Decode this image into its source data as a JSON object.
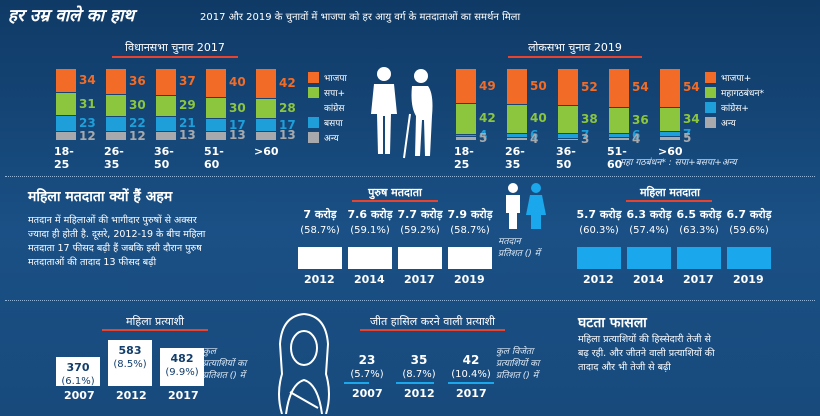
{
  "header": {
    "title": "हर उम्र वाले का हाथ",
    "subtitle": "2017 और 2019 के चुनावों में भाजपा को हर आयु वर्ग के मतदाताओं का समर्थन मिला"
  },
  "colors": {
    "bjp": "#f26c27",
    "green": "#8cc63f",
    "blue": "#1e9fd9",
    "grey": "#a7a9ac",
    "line": "#e8432e",
    "cyan": "#1aa7ec"
  },
  "chart_data": [
    {
      "type": "bar",
      "stacked": true,
      "title": "विधानसभा चुनाव 2017",
      "categories": [
        "18-25",
        "26-35",
        "36-50",
        "51-60",
        ">60"
      ],
      "series": [
        {
          "name": "भाजपा",
          "values": [
            34,
            36,
            37,
            40,
            42
          ]
        },
        {
          "name": "सपा+ कांग्रेस",
          "values": [
            31,
            30,
            29,
            30,
            28
          ]
        },
        {
          "name": "बसपा",
          "values": [
            23,
            22,
            21,
            17,
            17
          ]
        },
        {
          "name": "अन्य",
          "values": [
            12,
            12,
            13,
            13,
            13
          ]
        }
      ]
    },
    {
      "type": "bar",
      "stacked": true,
      "title": "लोकसभा चुनाव 2019",
      "categories": [
        "18-25",
        "26-35",
        "36-50",
        "51-60",
        ">60"
      ],
      "series": [
        {
          "name": "भाजपा+",
          "values": [
            49,
            50,
            52,
            54,
            54
          ]
        },
        {
          "name": "महागठबंधन*",
          "values": [
            42,
            40,
            38,
            36,
            34
          ]
        },
        {
          "name": "कांग्रेस+",
          "values": [
            4,
            6,
            7,
            6,
            7
          ]
        },
        {
          "name": "अन्य",
          "values": [
            5,
            4,
            3,
            4,
            5
          ]
        }
      ],
      "footnote": "महा गठबंधन* : सपा+बसपा+अन्य"
    },
    {
      "type": "bar",
      "title": "पुरुष मतदाता",
      "categories": [
        "2012",
        "2014",
        "2017",
        "2019"
      ],
      "values": [
        7,
        7.6,
        7.7,
        7.9
      ],
      "value_labels": [
        "7 करोड़",
        "7.6 करोड़",
        "7.7 करोड़",
        "7.9 करोड़"
      ],
      "pct_labels": [
        "(58.7%)",
        "(59.1%)",
        "(59.2%)",
        "(58.7%)"
      ]
    },
    {
      "type": "bar",
      "title": "महिला मतदाता",
      "categories": [
        "2012",
        "2014",
        "2017",
        "2019"
      ],
      "values": [
        5.7,
        6.3,
        6.5,
        6.7
      ],
      "value_labels": [
        "5.7 करोड़",
        "6.3 करोड़",
        "6.5 करोड़",
        "6.7 करोड़"
      ],
      "pct_labels": [
        "(60.3%)",
        "(57.4%)",
        "(63.3%)",
        "(59.6%)"
      ]
    },
    {
      "type": "bar",
      "title": "महिला प्रत्याशी",
      "categories": [
        "2007",
        "2012",
        "2017"
      ],
      "values": [
        370,
        583,
        482
      ],
      "pct_labels": [
        "(6.1%)",
        "(8.5%)",
        "(9.9%)"
      ]
    },
    {
      "type": "bar",
      "title": "जीत हासिल करने वाली प्रत्याशी",
      "categories": [
        "2007",
        "2012",
        "2017"
      ],
      "values": [
        23,
        35,
        42
      ],
      "pct_labels": [
        "(5.7%)",
        "(8.7%)",
        "(10.4%)"
      ]
    }
  ],
  "legend_2017": [
    "भाजपा",
    "सपा+",
    "कांग्रेस",
    "बसपा",
    "अन्य"
  ],
  "legend_2019": [
    "भाजपा+",
    "महागठबंधन*",
    "कांग्रेस+",
    "अन्य"
  ],
  "women": {
    "heading": "महिला मतदाता क्यों हैं अहम",
    "para": [
      "मतदान में महिलाओं की भागीदार पुरुषों से अक्सर",
      "ज्यादा ही होती है. दूसरे, 2012-19 के बीच महिला",
      "मतदाता 17 फीसद बढ़ी हैं जबकि इसी दौरान पुरुष",
      "मतदाताओं की तादाद 13 फीसद बढ़ी"
    ],
    "voter_note": [
      "मतदान",
      "प्रतिशत () में"
    ]
  },
  "cand": {
    "note": [
      "कुल",
      "प्रत्याशियों का",
      "प्रतिशत () में"
    ],
    "win_note": [
      "कुल विजेता",
      "प्रत्याशियों का",
      "प्रतिशत () में"
    ]
  },
  "decline": {
    "heading": "घटता फासला",
    "para": [
      "महिला प्रत्याशियों की हिस्सेदारी तेजी से",
      "बढ़ रही. और जीतने वाली प्रत्याशियों की",
      "तादाद और भी तेजी से बढ़ी"
    ]
  }
}
